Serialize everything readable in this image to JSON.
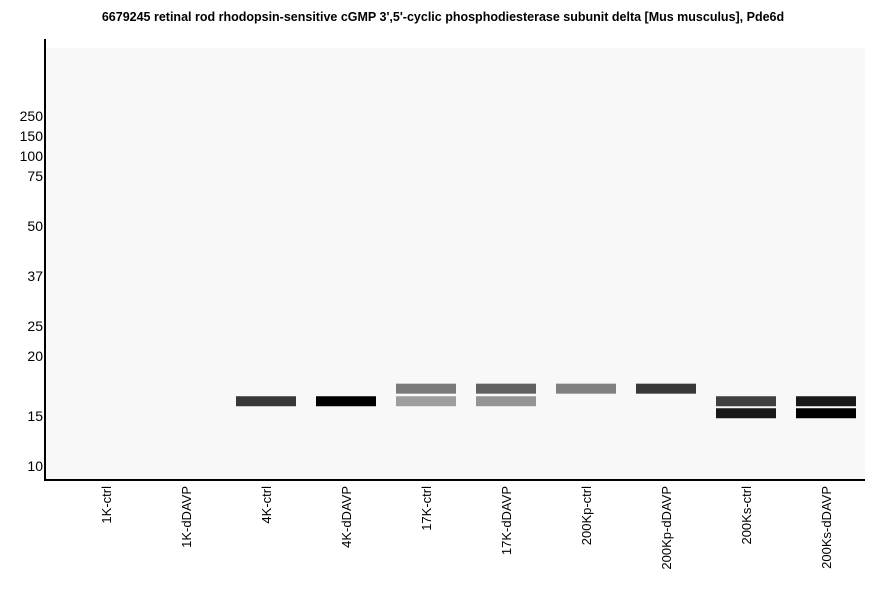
{
  "chart_data": {
    "type": "heatmap",
    "title": "6679245 retinal rod rhodopsin-sensitive cGMP 3',5'-cyclic phosphodiesterase subunit delta [Mus musculus], Pde6d",
    "y_scale": "log",
    "y_ticks": [
      250,
      150,
      100,
      75,
      50,
      37,
      25,
      20,
      15,
      10
    ],
    "lanes": [
      "1K-ctrl",
      "1K-dDAVP",
      "4K-ctrl",
      "4K-dDAVP",
      "17K-ctrl",
      "17K-dDAVP",
      "200Kp-ctrl",
      "200Kp-dDAVP",
      "200Ks-ctrl",
      "200Ks-dDAVP"
    ],
    "bands": [
      {
        "lane": "4K-ctrl",
        "mw": 16.1,
        "intensity": 0.78
      },
      {
        "lane": "4K-dDAVP",
        "mw": 16.1,
        "intensity": 1.0
      },
      {
        "lane": "17K-ctrl",
        "mw": 17.1,
        "intensity": 0.52
      },
      {
        "lane": "17K-ctrl",
        "mw": 16.1,
        "intensity": 0.38
      },
      {
        "lane": "17K-dDAVP",
        "mw": 17.1,
        "intensity": 0.62
      },
      {
        "lane": "17K-dDAVP",
        "mw": 16.1,
        "intensity": 0.42
      },
      {
        "lane": "200Kp-ctrl",
        "mw": 17.1,
        "intensity": 0.5
      },
      {
        "lane": "200Kp-dDAVP",
        "mw": 17.1,
        "intensity": 0.78
      },
      {
        "lane": "200Ks-ctrl",
        "mw": 16.1,
        "intensity": 0.75
      },
      {
        "lane": "200Ks-ctrl",
        "mw": 15.2,
        "intensity": 0.9
      },
      {
        "lane": "200Ks-dDAVP",
        "mw": 16.1,
        "intensity": 0.9
      },
      {
        "lane": "200Ks-dDAVP",
        "mw": 15.2,
        "intensity": 1.0
      }
    ]
  }
}
